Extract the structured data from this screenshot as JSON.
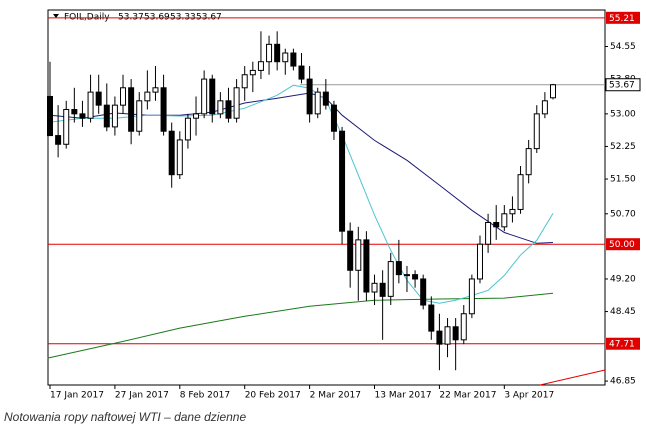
{
  "chart_data": {
    "type": "candlestick",
    "title": "FOIL,Daily",
    "categories": [
      "17 Jan 2017",
      null,
      null,
      null,
      null,
      null,
      null,
      null,
      "27 Jan 2017",
      null,
      null,
      null,
      null,
      null,
      null,
      null,
      "8 Feb 2017",
      null,
      null,
      null,
      null,
      null,
      null,
      null,
      "20 Feb 2017",
      null,
      null,
      null,
      null,
      null,
      null,
      null,
      "2 Mar 2017",
      null,
      null,
      null,
      null,
      null,
      null,
      null,
      "13 Mar 2017",
      null,
      null,
      null,
      null,
      null,
      null,
      null,
      "22 Mar 2017",
      null,
      null,
      null,
      null,
      null,
      null,
      null,
      "3 Apr 2017",
      null,
      null,
      null,
      null,
      null,
      null
    ],
    "open": [
      53.4,
      52.5,
      52.3,
      53.1,
      53.0,
      52.9,
      53.5,
      53.2,
      52.7,
      53.2,
      53.6,
      52.6,
      53.3,
      53.5,
      53.6,
      52.6,
      51.6,
      52.4,
      52.9,
      53.0,
      53.8,
      53.0,
      53.3,
      52.9,
      53.6,
      53.9,
      54.0,
      54.2,
      54.6,
      54.2,
      54.4,
      54.1,
      53.8,
      53.0,
      53.5,
      53.2,
      52.6,
      50.3,
      49.4,
      50.1,
      48.9,
      49.1,
      48.8,
      49.6,
      49.3,
      49.3,
      49.2,
      48.6,
      48.0,
      47.7,
      48.1,
      47.8,
      48.4,
      49.2,
      50.0,
      50.5,
      50.4,
      50.7,
      50.8,
      51.6,
      52.2,
      53.0,
      53.37
    ],
    "high": [
      54.2,
      53.2,
      53.3,
      53.6,
      53.3,
      53.9,
      53.9,
      53.7,
      53.4,
      53.9,
      53.8,
      53.5,
      54.0,
      54.1,
      53.9,
      52.8,
      52.6,
      53.0,
      53.4,
      54.0,
      53.9,
      53.5,
      53.6,
      53.8,
      54.1,
      54.2,
      54.9,
      54.8,
      54.9,
      54.5,
      54.5,
      54.4,
      54.1,
      53.6,
      53.8,
      53.3,
      52.7,
      50.5,
      50.4,
      50.3,
      49.3,
      49.4,
      49.8,
      50.1,
      49.5,
      49.4,
      49.3,
      48.8,
      48.4,
      48.3,
      48.3,
      48.6,
      49.3,
      50.2,
      50.7,
      50.9,
      50.9,
      51.1,
      51.8,
      52.4,
      53.2,
      53.5,
      53.69
    ],
    "low": [
      52.5,
      52.0,
      52.2,
      52.8,
      52.7,
      52.8,
      53.0,
      52.6,
      52.5,
      53.0,
      52.3,
      52.5,
      53.1,
      53.3,
      52.5,
      51.3,
      51.5,
      52.2,
      52.5,
      52.9,
      52.8,
      52.9,
      52.8,
      52.8,
      53.3,
      53.5,
      53.8,
      53.9,
      54.0,
      53.9,
      54.0,
      53.7,
      52.8,
      52.9,
      53.1,
      52.4,
      50.0,
      49.0,
      48.7,
      48.7,
      48.6,
      47.8,
      48.6,
      49.1,
      48.9,
      49.0,
      48.5,
      47.8,
      47.1,
      47.4,
      47.1,
      47.7,
      48.3,
      49.1,
      49.8,
      50.1,
      50.3,
      50.5,
      50.7,
      51.4,
      52.1,
      52.9,
      53.33
    ],
    "close": [
      52.5,
      52.3,
      53.1,
      53.0,
      52.9,
      53.5,
      53.2,
      52.7,
      53.2,
      53.6,
      52.6,
      53.3,
      53.5,
      53.6,
      52.6,
      51.6,
      52.4,
      52.9,
      53.0,
      53.8,
      53.0,
      53.3,
      52.9,
      53.6,
      53.9,
      54.0,
      54.2,
      54.6,
      54.2,
      54.4,
      54.1,
      53.8,
      53.0,
      53.5,
      53.2,
      52.6,
      50.3,
      49.4,
      50.1,
      48.9,
      49.1,
      48.8,
      49.6,
      49.3,
      49.3,
      49.2,
      48.6,
      48.0,
      47.7,
      48.1,
      47.8,
      48.4,
      49.2,
      50.0,
      50.5,
      50.4,
      50.7,
      50.8,
      51.6,
      52.2,
      53.0,
      53.3,
      53.67
    ],
    "up_color": "#ffffff",
    "down_color": "#000000",
    "series": [
      {
        "color": "#1a7a1a",
        "x": [
          -0.3,
          8,
          16,
          24,
          32,
          40,
          48,
          56,
          62
        ],
        "values": [
          47.38,
          47.72,
          48.07,
          48.34,
          48.57,
          48.71,
          48.74,
          48.76,
          48.87
        ]
      },
      {
        "color": "#1c1c78",
        "x": [
          0,
          4,
          8,
          12,
          16,
          20,
          24,
          28,
          32,
          34,
          36,
          40,
          44,
          48,
          52,
          56,
          60,
          62
        ],
        "values": [
          52.97,
          52.9,
          53.02,
          52.97,
          52.97,
          53.04,
          53.25,
          53.36,
          53.48,
          53.36,
          52.97,
          52.39,
          51.93,
          51.36,
          50.78,
          50.27,
          50.02,
          50.04
        ]
      },
      {
        "color": "#4cc4d0",
        "x": [
          0,
          4,
          8,
          12,
          16,
          20,
          24,
          28,
          30,
          32,
          34,
          36,
          38,
          40,
          42,
          44,
          46,
          48,
          50,
          52,
          54,
          56,
          58,
          60,
          62
        ],
        "values": [
          52.81,
          52.9,
          52.9,
          52.97,
          52.95,
          52.97,
          53.13,
          53.43,
          53.66,
          53.59,
          53.32,
          52.51,
          51.59,
          50.67,
          49.86,
          49.17,
          48.71,
          48.64,
          48.71,
          48.82,
          48.94,
          49.28,
          49.75,
          50.09,
          50.71
        ]
      }
    ],
    "levels": [
      55.21,
      {
        "value": 50,
        "label": "50.00"
      },
      47.71
    ],
    "level_color": "#e00000",
    "ylim": [
      46.76,
      55.39
    ],
    "yticks": [
      54.55,
      {
        "value": 53.8,
        "label": "53.80"
      },
      {
        "value": 53,
        "label": "53.00"
      },
      52.25,
      {
        "value": 51.5,
        "label": "51.50"
      },
      {
        "value": 50.7,
        "label": "50.70"
      },
      {
        "value": 49.2,
        "label": "49.20"
      },
      48.45,
      46.85
    ]
  },
  "caption": "Notowania ropy naftowej WTI – dane dzienne"
}
